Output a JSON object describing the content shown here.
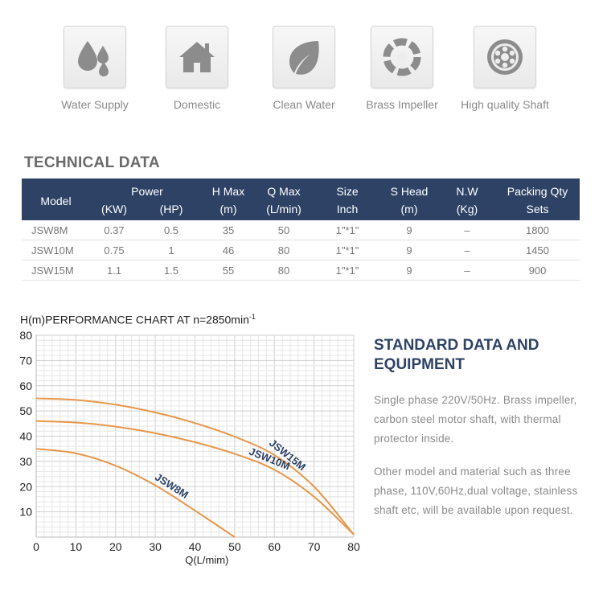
{
  "features": [
    {
      "label": "Water Supply",
      "icon": "water-drops-icon"
    },
    {
      "label": "Domestic",
      "icon": "house-icon"
    },
    {
      "label": "Clean Water",
      "icon": "leaf-icon"
    },
    {
      "label": "Brass Impeller",
      "icon": "impeller-icon"
    },
    {
      "label": "High quality Shaft",
      "icon": "bearing-icon"
    }
  ],
  "tech": {
    "title": "TECHNICAL DATA",
    "headers": {
      "model": "Model",
      "power": "Power",
      "kw": "(KW)",
      "hp": "(HP)",
      "hmax": "H Max",
      "hmax_unit": "(m)",
      "qmax": "Q Max",
      "qmax_unit": "(L/min)",
      "size": "Size",
      "size_unit": "Inch",
      "shead": "S Head",
      "shead_unit": "(m)",
      "nw": "N.W",
      "nw_unit": "(Kg)",
      "packing": "Packing Qty",
      "packing_unit": "Sets"
    },
    "rows": [
      {
        "model": "JSW8M",
        "kw": "0.37",
        "hp": "0.5",
        "hmax": "35",
        "qmax": "50",
        "size": "1\"*1\"",
        "shead": "9",
        "nw": "–",
        "packing": "1800"
      },
      {
        "model": "JSW10M",
        "kw": "0.75",
        "hp": "1",
        "hmax": "46",
        "qmax": "80",
        "size": "1\"*1\"",
        "shead": "9",
        "nw": "–",
        "packing": "1450"
      },
      {
        "model": "JSW15M",
        "kw": "1.1",
        "hp": "1.5",
        "hmax": "55",
        "qmax": "80",
        "size": "1\"*1\"",
        "shead": "9",
        "nw": "–",
        "packing": "900"
      }
    ]
  },
  "chart_title": "H(m)PERFORMANCE CHART AT n=2850min",
  "chart_title_sup": "-1",
  "chart_data": {
    "type": "line",
    "title": "H(m)PERFORMANCE CHART AT n=2850min-1",
    "xlabel": "Q(L/mim)",
    "ylabel": "H(m)",
    "xlim": [
      0,
      80
    ],
    "ylim": [
      0,
      80
    ],
    "x_ticks": [
      0,
      10,
      20,
      30,
      40,
      50,
      60,
      70,
      80
    ],
    "y_ticks": [
      10,
      20,
      30,
      40,
      50,
      60,
      70,
      80
    ],
    "grid": true,
    "line_color": "#e8974a",
    "series": [
      {
        "name": "JSW15M",
        "x": [
          0,
          10,
          20,
          30,
          40,
          50,
          60,
          70,
          80
        ],
        "y": [
          55,
          54.4,
          52.5,
          49.4,
          45.2,
          39.8,
          32.5,
          20,
          1
        ]
      },
      {
        "name": "JSW10M",
        "x": [
          0,
          10,
          20,
          30,
          40,
          50,
          60,
          70,
          80
        ],
        "y": [
          46,
          45.4,
          43.8,
          41.2,
          37.6,
          33,
          26.7,
          16,
          1
        ]
      },
      {
        "name": "JSW8M",
        "x": [
          0,
          10,
          20,
          30,
          40,
          50
        ],
        "y": [
          35,
          33.2,
          28.3,
          20.5,
          10.5,
          0
        ]
      }
    ]
  },
  "standard": {
    "title": "STANDARD DATA AND EQUIPMENT",
    "p1": "Single phase 220V/50Hz. Brass impeller, carbon steel motor shaft, with thermal protector inside.",
    "p2": "Other model and material such as three phase, 110V,60Hz,dual voltage, stainless shaft etc, will be available upon request."
  }
}
